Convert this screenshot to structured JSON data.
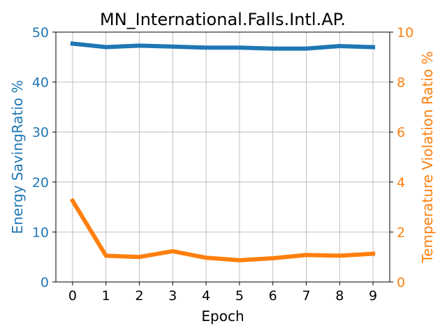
{
  "chart_data": {
    "type": "line",
    "title": "MN_International.Falls.Intl.AP.",
    "xlabel": "Epoch",
    "ylabel_left": "Energy SavingRatio %",
    "ylabel_right": "Temperature Violation Ratio %",
    "x": [
      0,
      1,
      2,
      3,
      4,
      5,
      6,
      7,
      8,
      9
    ],
    "xlim": [
      -0.5,
      9.5
    ],
    "ylim_left": [
      0,
      50
    ],
    "ylim_right": [
      0,
      10
    ],
    "yticks_left": [
      0,
      10,
      20,
      30,
      40,
      50
    ],
    "yticks_right": [
      0,
      2,
      4,
      6,
      8,
      10
    ],
    "grid": true,
    "series": [
      {
        "axis": "left",
        "color": "#1f77b4",
        "values": [
          47.7,
          47.0,
          47.3,
          47.1,
          46.9,
          46.9,
          46.7,
          46.7,
          47.2,
          47.0
        ]
      },
      {
        "axis": "right",
        "color": "#ff7f0e",
        "values": [
          3.25,
          1.05,
          1.0,
          1.23,
          0.97,
          0.87,
          0.95,
          1.08,
          1.05,
          1.13
        ]
      }
    ],
    "left_axis_color": "#1f77b4",
    "right_axis_color": "#ff7f0e"
  }
}
